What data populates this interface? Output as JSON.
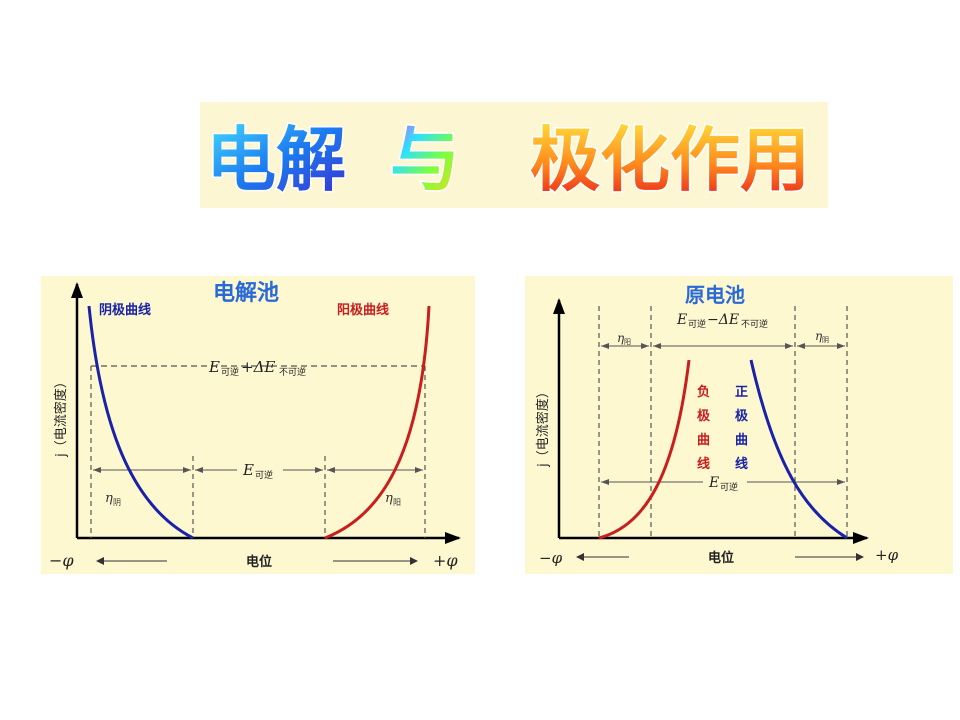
{
  "banner": {
    "word_left": "电解",
    "word_mid": "与",
    "word_right": "极化作用"
  },
  "left_panel": {
    "title": "电解池",
    "cathode_label": "阴极曲线",
    "anode_label": "阳极曲线",
    "y_axis_label": "j（电流密度）",
    "top_span_E": "E",
    "top_span_sub1": "可逆",
    "top_span_plus": "+ΔE",
    "top_span_sub2": "不可逆",
    "mid_span_E": "E",
    "mid_span_sub": "可逆",
    "eta_left": "η",
    "eta_left_sub": "阴",
    "eta_right": "η",
    "eta_right_sub": "阳",
    "x_axis_label": "电位",
    "x_left": "−φ",
    "x_right": "+φ",
    "colors": {
      "cathode": "#1a22a8",
      "anode": "#c81e1e"
    }
  },
  "right_panel": {
    "title": "原电池",
    "top_span_E": "E",
    "top_span_sub1": "可逆",
    "top_span_minus": "−ΔE",
    "top_span_sub2": "不可逆",
    "eta_left": "η",
    "eta_left_sub": "阳",
    "eta_right": "η",
    "eta_right_sub": "阴",
    "neg_curve_chars": [
      "负",
      "极",
      "曲",
      "线"
    ],
    "pos_curve_chars": [
      "正",
      "极",
      "曲",
      "线"
    ],
    "y_axis_label": "j（电流密度）",
    "bottom_span_E": "E",
    "bottom_span_sub": "可逆",
    "x_axis_label": "电位",
    "x_left": "−φ",
    "x_right": "+φ",
    "colors": {
      "negative": "#c81e1e",
      "positive": "#1a22a8"
    }
  }
}
